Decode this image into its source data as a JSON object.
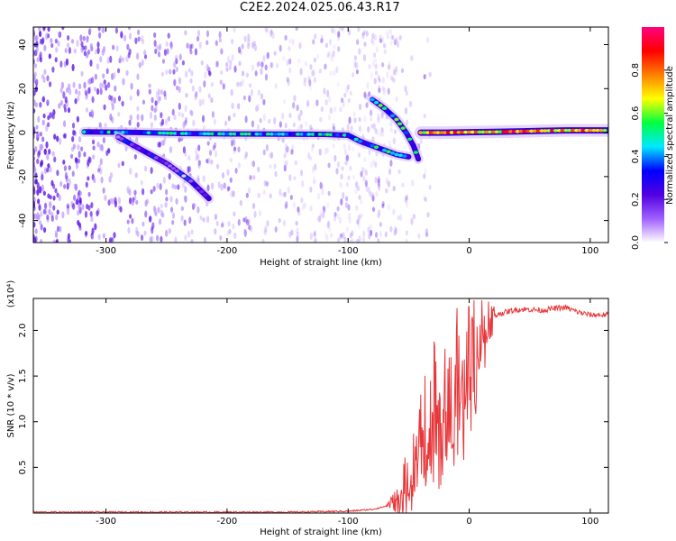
{
  "title": "C2E2.2024.025.06.43.R17",
  "chart_data": [
    {
      "type": "heatmap",
      "xlabel": "Height of straight line (km)",
      "ylabel": "Frequency (Hz)",
      "xlim": [
        -360,
        115
      ],
      "ylim": [
        -50,
        48
      ],
      "xticks": [
        -300,
        -200,
        -100,
        0,
        100
      ],
      "yticks": [
        -40,
        -20,
        0,
        20,
        40
      ],
      "colorbar": {
        "label": "Normalized spectral amplitude",
        "range": [
          0,
          1
        ],
        "ticks": [
          "0.0",
          "0.2",
          "0.4",
          "0.6",
          "0.8"
        ],
        "colors": [
          "#ffffff",
          "#a060ff",
          "#5000e0",
          "#0000ff",
          "#00e8ff",
          "#00ff40",
          "#ffff00",
          "#ff8000",
          "#ff0000",
          "#ff0080"
        ]
      },
      "features": [
        {
          "name": "main-trace",
          "points": [
            [
              -318,
              0.3
            ],
            [
              -280,
              0.1
            ],
            [
              -240,
              -0.4
            ],
            [
              -200,
              -0.6
            ],
            [
              -160,
              -0.7
            ],
            [
              -120,
              -0.8
            ],
            [
              -100,
              -1.2
            ],
            [
              -90,
              -4
            ],
            [
              -80,
              -6
            ],
            [
              -70,
              -8
            ],
            [
              -60,
              -10
            ],
            [
              -50,
              -11
            ]
          ],
          "amplitude": 0.4
        },
        {
          "name": "lower-branch",
          "points": [
            [
              -290,
              -2
            ],
            [
              -270,
              -8
            ],
            [
              -250,
              -14
            ],
            [
              -230,
              -22
            ],
            [
              -215,
              -30
            ]
          ],
          "amplitude": 0.2
        },
        {
          "name": "upper-branch",
          "points": [
            [
              -80,
              15
            ],
            [
              -70,
              11
            ],
            [
              -60,
              6
            ],
            [
              -52,
              0
            ],
            [
              -46,
              -6
            ],
            [
              -42,
              -12
            ]
          ],
          "amplitude": 0.45
        },
        {
          "name": "upper-trace",
          "points": [
            [
              -40,
              0
            ],
            [
              -20,
              0
            ],
            [
              0,
              0.2
            ],
            [
              20,
              0.3
            ],
            [
              40,
              0.5
            ],
            [
              60,
              0.8
            ],
            [
              80,
              1.0
            ],
            [
              100,
              1.0
            ],
            [
              115,
              1.0
            ]
          ],
          "amplitude": 0.75
        }
      ]
    },
    {
      "type": "line",
      "xlabel": "Height of straight line (km)",
      "ylabel": "SNR (10 * v/v)",
      "multiplier": "(x10⁴)",
      "xlim": [
        -360,
        115
      ],
      "ylim": [
        0,
        2.35
      ],
      "xticks": [
        -300,
        -200,
        -100,
        0,
        100
      ],
      "yticks": [
        0.5,
        1.0,
        1.5,
        2.0
      ],
      "series": [
        {
          "color": "#e8363a",
          "x": [
            -360,
            -300,
            -200,
            -150,
            -100,
            -80,
            -70,
            -60,
            -55,
            -50,
            -45,
            -40,
            -35,
            -30,
            -25,
            -20,
            -15,
            -10,
            -5,
            0,
            5,
            10,
            15,
            20,
            30,
            40,
            50,
            60,
            70,
            80,
            90,
            100,
            115
          ],
          "y": [
            0.01,
            0.01,
            0.01,
            0.01,
            0.02,
            0.04,
            0.07,
            0.14,
            0.25,
            0.45,
            0.7,
            1.2,
            1.0,
            1.3,
            1.1,
            1.4,
            1.3,
            1.6,
            1.45,
            1.7,
            1.85,
            2.0,
            2.1,
            2.17,
            2.2,
            2.23,
            2.23,
            2.22,
            2.24,
            2.25,
            2.2,
            2.17,
            2.17
          ]
        }
      ]
    }
  ]
}
